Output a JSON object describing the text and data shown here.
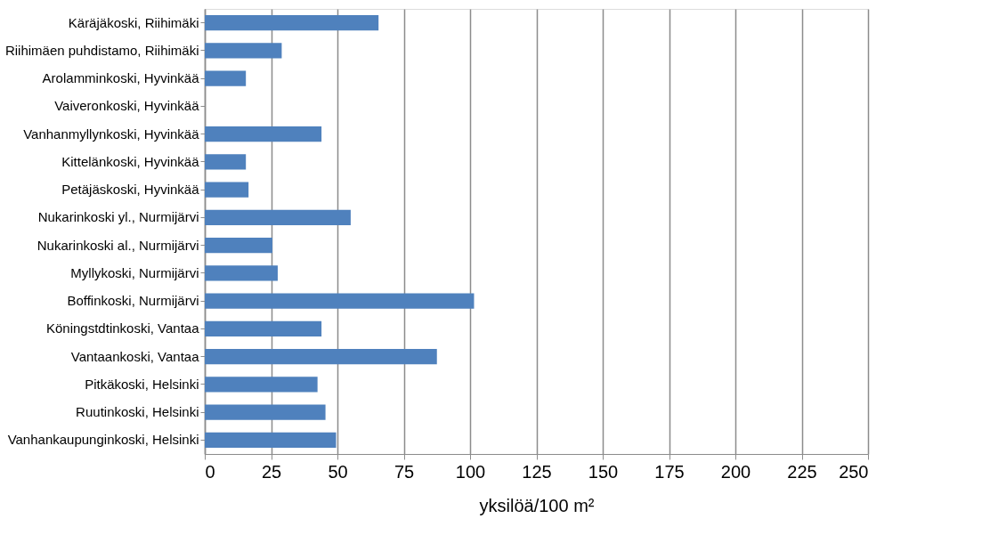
{
  "chart_data": {
    "type": "bar",
    "orientation": "horizontal",
    "xlabel": "yksilöä/100 m²",
    "categories": [
      "Käräjäkoski, Riihimäki",
      "Riihimäen puhdistamo, Riihimäki",
      "Arolamminkoski, Hyvinkää",
      "Vaiveronkoski, Hyvinkää",
      "Vanhanmyllynkoski, Hyvinkää",
      "Kittelänkoski, Hyvinkää",
      "Petäjäskoski, Hyvinkää",
      "Nukarinkoski yl., Nurmijärvi",
      "Nukarinkoski al., Nurmijärvi",
      "Myllykoski, Nurmijärvi",
      "Boffinkoski, Nurmijärvi",
      "Köningstdtinkoski, Vantaa",
      "Vantaankoski, Vantaa",
      "Pitkäkoski, Helsinki",
      "Ruutinkoski, Helsinki",
      "Vanhankaupunginkoski, Helsinki"
    ],
    "values": [
      65.5,
      29,
      15.5,
      0,
      44,
      15.5,
      16.5,
      55,
      25.5,
      27.5,
      101.5,
      44,
      87.5,
      42.5,
      45.5,
      49.5
    ],
    "color": "#4f81bd",
    "xlim": [
      0,
      250
    ],
    "xticks": [
      0,
      25,
      50,
      75,
      100,
      125,
      150,
      175,
      200,
      225,
      250
    ],
    "grid": "x",
    "legend": false
  }
}
